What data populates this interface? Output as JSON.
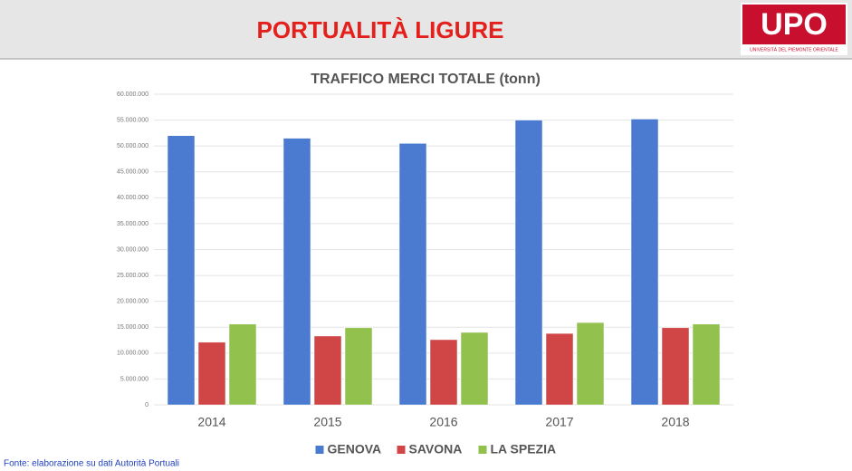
{
  "header": {
    "title": "PORTUALITÀ LIGURE",
    "logo": "UPO",
    "logo_caption": "UNIVERSITÀ DEL PIEMONTE ORIENTALE"
  },
  "footer": "Fonte: elaborazione su dati Autorità Portuali",
  "chart_data": {
    "type": "bar",
    "title": "TRAFFICO MERCI TOTALE (tonn)",
    "categories": [
      "2014",
      "2015",
      "2016",
      "2017",
      "2018"
    ],
    "series": [
      {
        "name": "GENOVA",
        "color": "#4a7bd0",
        "values": [
          52000000,
          51500000,
          50500000,
          55000000,
          55200000
        ]
      },
      {
        "name": "SAVONA",
        "color": "#d04545",
        "values": [
          12100000,
          13300000,
          12600000,
          13800000,
          14900000
        ]
      },
      {
        "name": "LA SPEZIA",
        "color": "#92c14e",
        "values": [
          15600000,
          14900000,
          14000000,
          15900000,
          15600000
        ]
      }
    ],
    "ylim": [
      0,
      60000000
    ],
    "yticks": [
      0,
      {
        "value": 5000000,
        "label": "5.000.000"
      },
      {
        "value": 10000000,
        "label": "10.000.000"
      },
      {
        "value": 15000000,
        "label": "15.000.000"
      },
      {
        "value": 20000000,
        "label": "20.000.000"
      },
      {
        "value": 25000000,
        "label": "25.000.000"
      },
      {
        "value": 30000000,
        "label": "30.000.000"
      },
      {
        "value": 35000000,
        "label": "35.000.000"
      },
      {
        "value": 40000000,
        "label": "40.000.000"
      },
      {
        "value": 45000000,
        "label": "45.000.000"
      },
      {
        "value": 50000000,
        "label": "50.000.000"
      },
      {
        "value": 55000000,
        "label": "55.000.000"
      },
      {
        "value": 60000000,
        "label": "60.000.000"
      }
    ],
    "grid": true,
    "legend": "bottom"
  }
}
